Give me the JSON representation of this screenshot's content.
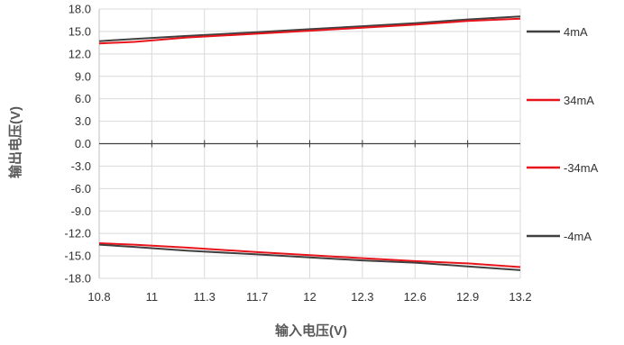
{
  "chart_data": {
    "type": "line",
    "title": "",
    "xlabel": "输入电压(V)",
    "ylabel": "输出电压(V)",
    "xlim": [
      10.8,
      13.2
    ],
    "ylim": [
      -18.0,
      18.0
    ],
    "x_ticks": [
      "10.8",
      "11",
      "11.3",
      "11.7",
      "12",
      "12.3",
      "12.6",
      "12.9",
      "13.2"
    ],
    "y_ticks": [
      "18.0",
      "15.0",
      "12.0",
      "9.0",
      "6.0",
      "3.0",
      "0.0",
      "-3.0",
      "-6.0",
      "-9.0",
      "-12.0",
      "-15.0",
      "-18.0"
    ],
    "grid": true,
    "legend_position": "right",
    "x": [
      10.8,
      11,
      11.3,
      11.7,
      12,
      12.3,
      12.6,
      12.9,
      13.2
    ],
    "series": [
      {
        "name": "4mA",
        "color": "#404040",
        "values": [
          13.7,
          14.0,
          14.4,
          14.9,
          15.3,
          15.7,
          16.1,
          16.6,
          17.0
        ]
      },
      {
        "name": "34mA",
        "color": "#e8141c",
        "values": [
          13.4,
          13.6,
          14.2,
          14.7,
          15.1,
          15.5,
          15.9,
          16.4,
          16.7
        ]
      },
      {
        "name": "-34mA",
        "color": "#e8141c",
        "values": [
          -13.3,
          -13.5,
          -13.9,
          -14.5,
          -14.9,
          -15.3,
          -15.7,
          -16.0,
          -16.5
        ]
      },
      {
        "name": "-4mA",
        "color": "#404040",
        "values": [
          -13.5,
          -13.8,
          -14.3,
          -14.8,
          -15.2,
          -15.6,
          -15.9,
          -16.4,
          -16.9
        ]
      }
    ]
  }
}
